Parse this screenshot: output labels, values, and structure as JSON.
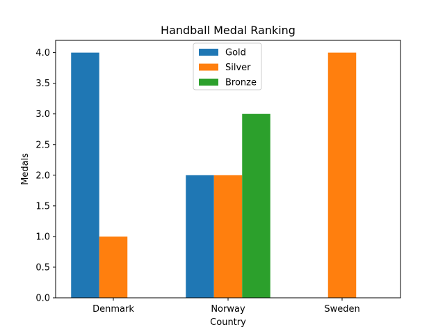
{
  "chart_data": {
    "type": "bar",
    "title": "Handball Medal Ranking",
    "xlabel": "Country",
    "ylabel": "Medals",
    "categories": [
      "Denmark",
      "Norway",
      "Sweden"
    ],
    "series": [
      {
        "name": "Gold",
        "color": "#1f77b4",
        "values": [
          4,
          2,
          0
        ]
      },
      {
        "name": "Silver",
        "color": "#ff7f0e",
        "values": [
          1,
          2,
          4
        ]
      },
      {
        "name": "Bronze",
        "color": "#2ca02c",
        "values": [
          0,
          3,
          0
        ]
      }
    ],
    "ylim": [
      0,
      4.2
    ],
    "yticks": [
      "0.0",
      "0.5",
      "1.0",
      "1.5",
      "2.0",
      "2.5",
      "3.0",
      "3.5",
      "4.0"
    ],
    "grid": false,
    "legend_position": "upper-center"
  }
}
